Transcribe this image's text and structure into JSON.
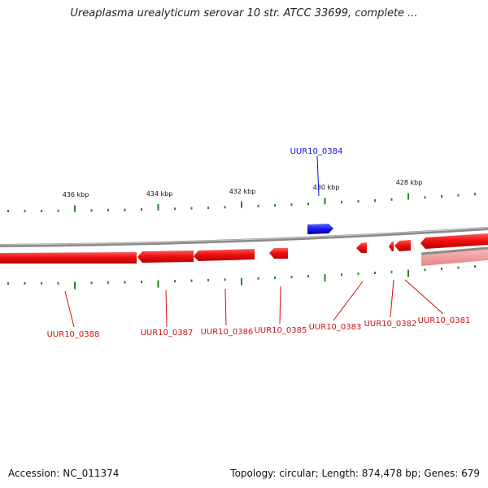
{
  "title": "Ureaplasma urealyticum serovar 10 str. ATCC 33699, complete ...",
  "footer": {
    "accession": "Accession: NC_011374",
    "summary": "Topology: circular; Length: 874,478 bp; Genes: 679"
  },
  "scale": {
    "labels": [
      "436 kbp",
      "434 kbp",
      "432 kbp",
      "430 kbp",
      "428 kbp"
    ]
  },
  "genes": {
    "forward": [
      {
        "label": "UUR10_0384",
        "color": "#1010d0"
      }
    ],
    "reverse": [
      {
        "label": "UUR10_0388",
        "color": "#cc1111"
      },
      {
        "label": "UUR10_0387",
        "color": "#cc1111"
      },
      {
        "label": "UUR10_0386",
        "color": "#cc1111"
      },
      {
        "label": "UUR10_0385",
        "color": "#cc1111"
      },
      {
        "label": "UUR10_0383",
        "color": "#cc1111"
      },
      {
        "label": "UUR10_0382",
        "color": "#cc1111"
      },
      {
        "label": "UUR10_0381",
        "color": "#cc1111"
      }
    ]
  },
  "colors": {
    "tick": "#228822",
    "backbone": "#888888",
    "gene_reverse": "#ee1111",
    "gene_forward": "#1a1aee"
  }
}
